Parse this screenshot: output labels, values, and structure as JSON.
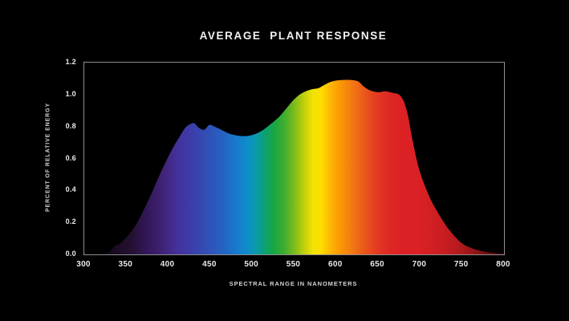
{
  "title": "AVERAGE  PLANT RESPONSE",
  "colors": {
    "background": "#000000",
    "plot_frame": "#8f8f8f",
    "title_text": "#f2f2f2",
    "tick_text": "#eaeaea",
    "axis_label_text": "#d4d4d4"
  },
  "chart_data": {
    "type": "area",
    "title": "AVERAGE  PLANT RESPONSE",
    "xlabel": "SPECTRAL RANGE IN NANOMETERS",
    "ylabel": "PERCENT OF RELATIVE ENERGY",
    "xlim": [
      300,
      800
    ],
    "ylim": [
      0,
      1.2
    ],
    "grid": false,
    "legend": false,
    "x_ticks": [
      300,
      350,
      400,
      450,
      500,
      550,
      600,
      650,
      700,
      750,
      800
    ],
    "y_ticks": [
      0.0,
      0.2,
      0.4,
      0.6,
      0.8,
      1.0,
      1.2
    ],
    "series_name": "average-plant-response",
    "points": [
      [
        325,
        0.0
      ],
      [
        331,
        0.02
      ],
      [
        337,
        0.055
      ],
      [
        342,
        0.065
      ],
      [
        347,
        0.09
      ],
      [
        354,
        0.13
      ],
      [
        362,
        0.19
      ],
      [
        371,
        0.28
      ],
      [
        380,
        0.38
      ],
      [
        390,
        0.5
      ],
      [
        399,
        0.6
      ],
      [
        407,
        0.68
      ],
      [
        414,
        0.74
      ],
      [
        420,
        0.79
      ],
      [
        426,
        0.815
      ],
      [
        431,
        0.82
      ],
      [
        437,
        0.79
      ],
      [
        443,
        0.78
      ],
      [
        449,
        0.81
      ],
      [
        455,
        0.8
      ],
      [
        463,
        0.78
      ],
      [
        472,
        0.757
      ],
      [
        482,
        0.744
      ],
      [
        492,
        0.74
      ],
      [
        502,
        0.75
      ],
      [
        512,
        0.775
      ],
      [
        522,
        0.815
      ],
      [
        532,
        0.86
      ],
      [
        541,
        0.915
      ],
      [
        550,
        0.97
      ],
      [
        558,
        1.005
      ],
      [
        566,
        1.025
      ],
      [
        573,
        1.035
      ],
      [
        579,
        1.04
      ],
      [
        586,
        1.06
      ],
      [
        593,
        1.078
      ],
      [
        601,
        1.088
      ],
      [
        611,
        1.092
      ],
      [
        620,
        1.09
      ],
      [
        627,
        1.08
      ],
      [
        633,
        1.05
      ],
      [
        641,
        1.025
      ],
      [
        650,
        1.015
      ],
      [
        659,
        1.02
      ],
      [
        668,
        1.01
      ],
      [
        675,
        1.0
      ],
      [
        680,
        0.965
      ],
      [
        683,
        0.92
      ],
      [
        686,
        0.86
      ],
      [
        689,
        0.77
      ],
      [
        692,
        0.69
      ],
      [
        698,
        0.55
      ],
      [
        705,
        0.44
      ],
      [
        713,
        0.34
      ],
      [
        722,
        0.255
      ],
      [
        731,
        0.18
      ],
      [
        741,
        0.115
      ],
      [
        751,
        0.065
      ],
      [
        762,
        0.038
      ],
      [
        774,
        0.02
      ],
      [
        786,
        0.01
      ],
      [
        800,
        0.005
      ]
    ],
    "spectrum_gradient": [
      {
        "nm": 300,
        "color": "#0d040f"
      },
      {
        "nm": 330,
        "color": "#160a1e"
      },
      {
        "nm": 355,
        "color": "#241030"
      },
      {
        "nm": 375,
        "color": "#33175a"
      },
      {
        "nm": 395,
        "color": "#422478"
      },
      {
        "nm": 410,
        "color": "#44309a"
      },
      {
        "nm": 425,
        "color": "#3e3ba8"
      },
      {
        "nm": 440,
        "color": "#3549b2"
      },
      {
        "nm": 455,
        "color": "#2c58bc"
      },
      {
        "nm": 470,
        "color": "#2169c6"
      },
      {
        "nm": 483,
        "color": "#167dcd"
      },
      {
        "nm": 495,
        "color": "#0d8fc9"
      },
      {
        "nm": 505,
        "color": "#0b9aa9"
      },
      {
        "nm": 515,
        "color": "#0ba172"
      },
      {
        "nm": 525,
        "color": "#17a647"
      },
      {
        "nm": 538,
        "color": "#3dad2f"
      },
      {
        "nm": 550,
        "color": "#7cbb1c"
      },
      {
        "nm": 562,
        "color": "#c1d00c"
      },
      {
        "nm": 572,
        "color": "#f0e202"
      },
      {
        "nm": 582,
        "color": "#fede00"
      },
      {
        "nm": 592,
        "color": "#fdba04"
      },
      {
        "nm": 603,
        "color": "#fc9d02"
      },
      {
        "nm": 615,
        "color": "#f4820f"
      },
      {
        "nm": 628,
        "color": "#ee6418"
      },
      {
        "nm": 640,
        "color": "#e84a1e"
      },
      {
        "nm": 652,
        "color": "#e23522"
      },
      {
        "nm": 665,
        "color": "#de2724"
      },
      {
        "nm": 680,
        "color": "#dc2125"
      },
      {
        "nm": 700,
        "color": "#d92125"
      },
      {
        "nm": 725,
        "color": "#cb1e22"
      },
      {
        "nm": 750,
        "color": "#b01a1d"
      },
      {
        "nm": 775,
        "color": "#7c1013"
      },
      {
        "nm": 800,
        "color": "#3f0709"
      }
    ]
  }
}
